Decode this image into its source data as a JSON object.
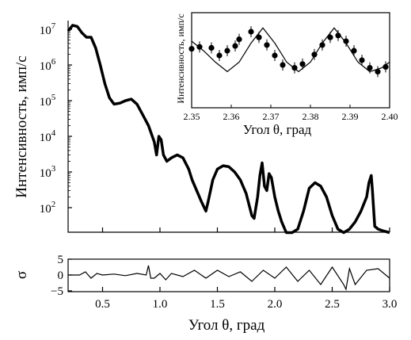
{
  "chart_data": [
    {
      "type": "line",
      "panel": "main",
      "xlabel": "Угол θ, град",
      "ylabel": "Интенсивность, имп/с",
      "xlim": [
        0.2,
        3.0
      ],
      "ylim": [
        20,
        15000000
      ],
      "yscale": "log",
      "grid": false,
      "xticks": [
        "0.5",
        "1.0",
        "1.5",
        "2.0",
        "2.5",
        "3.0"
      ],
      "yticks": [
        {
          "base": "10",
          "exp": "2"
        },
        {
          "base": "10",
          "exp": "3"
        },
        {
          "base": "10",
          "exp": "4"
        },
        {
          "base": "10",
          "exp": "5"
        },
        {
          "base": "10",
          "exp": "6"
        },
        {
          "base": "10",
          "exp": "7"
        }
      ],
      "series": [
        {
          "x": [
            0.2,
            0.24,
            0.28,
            0.32,
            0.36,
            0.4,
            0.44,
            0.48,
            0.52,
            0.56,
            0.6,
            0.65,
            0.7,
            0.75,
            0.8,
            0.85,
            0.9,
            0.95,
            0.97,
            0.99,
            1.01,
            1.03,
            1.06,
            1.1,
            1.15,
            1.2,
            1.25,
            1.28,
            1.32,
            1.36,
            1.4,
            1.42,
            1.46,
            1.5,
            1.55,
            1.6,
            1.65,
            1.7,
            1.75,
            1.8,
            1.82,
            1.85,
            1.87,
            1.89,
            1.91,
            1.93,
            1.95,
            1.97,
            2.0,
            2.03,
            2.06,
            2.1,
            2.15,
            2.2,
            2.25,
            2.3,
            2.35,
            2.4,
            2.45,
            2.5,
            2.55,
            2.6,
            2.65,
            2.7,
            2.75,
            2.8,
            2.82,
            2.84,
            2.85,
            2.87,
            2.9,
            2.95,
            3.0
          ],
          "y": [
            9000000,
            13000000,
            12000000,
            8000000,
            6000000,
            6000000,
            3000000,
            1000000,
            300000,
            120000,
            80000,
            85000,
            100000,
            110000,
            80000,
            40000,
            20000,
            7000,
            3000,
            10000,
            8000,
            3000,
            2000,
            2500,
            3000,
            2500,
            1200,
            600,
            300,
            150,
            80,
            150,
            600,
            1200,
            1500,
            1400,
            1000,
            600,
            250,
            60,
            50,
            200,
            800,
            1800,
            400,
            300,
            900,
            700,
            200,
            80,
            40,
            20,
            20,
            25,
            80,
            350,
            500,
            400,
            200,
            60,
            25,
            20,
            25,
            40,
            80,
            200,
            500,
            800,
            300,
            30,
            25,
            22,
            20
          ]
        }
      ]
    },
    {
      "type": "line",
      "panel": "residual",
      "xlabel": "Угол θ, град",
      "ylabel": "σ",
      "xlim": [
        0.2,
        3.0
      ],
      "ylim": [
        -5,
        5
      ],
      "yticks": [
        "5",
        "0",
        "−5"
      ],
      "series": [
        {
          "x": [
            0.2,
            0.3,
            0.35,
            0.4,
            0.45,
            0.5,
            0.6,
            0.7,
            0.8,
            0.88,
            0.9,
            0.92,
            0.95,
            1.0,
            1.05,
            1.1,
            1.2,
            1.3,
            1.4,
            1.5,
            1.6,
            1.7,
            1.8,
            1.9,
            2.0,
            2.1,
            2.2,
            2.3,
            2.4,
            2.5,
            2.6,
            2.62,
            2.65,
            2.7,
            2.8,
            2.9,
            3.0
          ],
          "y": [
            0,
            0,
            1,
            -1,
            0.5,
            0,
            0.3,
            -0.2,
            0.5,
            0,
            3,
            -1,
            -1,
            0.5,
            -1.5,
            0.5,
            -0.5,
            1.5,
            -1,
            1.5,
            -0.5,
            1,
            -2,
            1.5,
            -1,
            2.5,
            -2,
            1.5,
            -3,
            2.5,
            -3,
            -4.5,
            2,
            -3,
            1.5,
            2,
            -1
          ]
        }
      ]
    },
    {
      "type": "scatter",
      "panel": "inset",
      "xlabel": "Угол θ, град",
      "ylabel": "Интенсивность, имп/с",
      "xlim": [
        2.35,
        2.4
      ],
      "xticks": [
        "2.35",
        "2.36",
        "2.37",
        "2.38",
        "2.39",
        "2.40"
      ],
      "series": [
        {
          "x": [
            2.35,
            2.352,
            2.355,
            2.357,
            2.359,
            2.361,
            2.362,
            2.365,
            2.367,
            2.369,
            2.371,
            2.373,
            2.376,
            2.378,
            2.381,
            2.383,
            2.385,
            2.387,
            2.389,
            2.391,
            2.393,
            2.395,
            2.397,
            2.399
          ],
          "y": [
            0.62,
            0.64,
            0.63,
            0.55,
            0.6,
            0.65,
            0.72,
            0.8,
            0.74,
            0.66,
            0.55,
            0.45,
            0.42,
            0.46,
            0.56,
            0.66,
            0.74,
            0.76,
            0.7,
            0.6,
            0.5,
            0.42,
            0.38,
            0.43
          ]
        },
        {
          "x": [
            2.35,
            2.353,
            2.356,
            2.359,
            2.362,
            2.365,
            2.368,
            2.371,
            2.374,
            2.377,
            2.38,
            2.383,
            2.386,
            2.389,
            2.392,
            2.395,
            2.398,
            2.4
          ],
          "y": [
            0.7,
            0.6,
            0.48,
            0.38,
            0.48,
            0.68,
            0.84,
            0.68,
            0.48,
            0.38,
            0.48,
            0.68,
            0.84,
            0.68,
            0.48,
            0.38,
            0.42,
            0.48
          ]
        }
      ]
    }
  ]
}
